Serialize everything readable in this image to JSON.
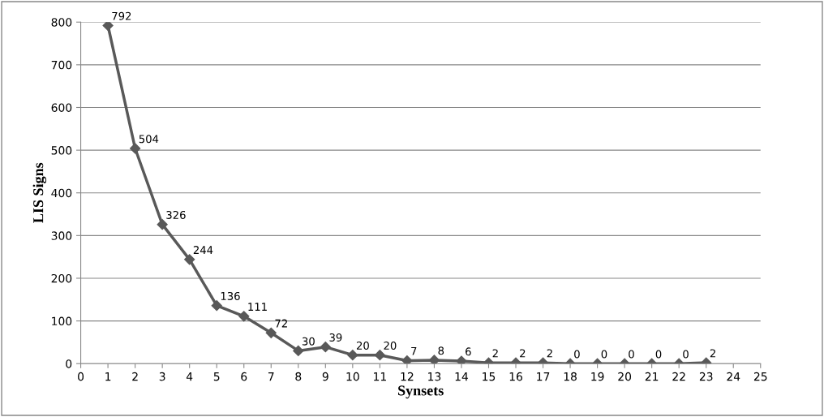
{
  "chart_data": {
    "type": "line",
    "xlabel": "Synsets",
    "ylabel": "LIS Signs",
    "x": [
      1,
      2,
      3,
      4,
      5,
      6,
      7,
      8,
      9,
      10,
      11,
      12,
      13,
      14,
      15,
      16,
      17,
      18,
      19,
      20,
      21,
      22,
      23
    ],
    "series": [
      {
        "color": "#595959",
        "values": [
          792,
          504,
          326,
          244,
          136,
          111,
          72,
          30,
          39,
          20,
          20,
          7,
          8,
          6,
          2,
          2,
          2,
          0,
          0,
          0,
          0,
          0,
          2
        ]
      }
    ],
    "xlim": [
      0,
      25
    ],
    "xticks": [
      0,
      1,
      2,
      3,
      4,
      5,
      6,
      7,
      8,
      9,
      10,
      11,
      12,
      13,
      14,
      15,
      16,
      17,
      18,
      19,
      20,
      21,
      22,
      23,
      24,
      25
    ],
    "ylim": [
      0,
      800
    ],
    "yticks": [
      0,
      100,
      200,
      300,
      400,
      500,
      600,
      700,
      800
    ],
    "grid": "y",
    "marker": "diamond",
    "line_style": "solid",
    "data_labels": true
  }
}
